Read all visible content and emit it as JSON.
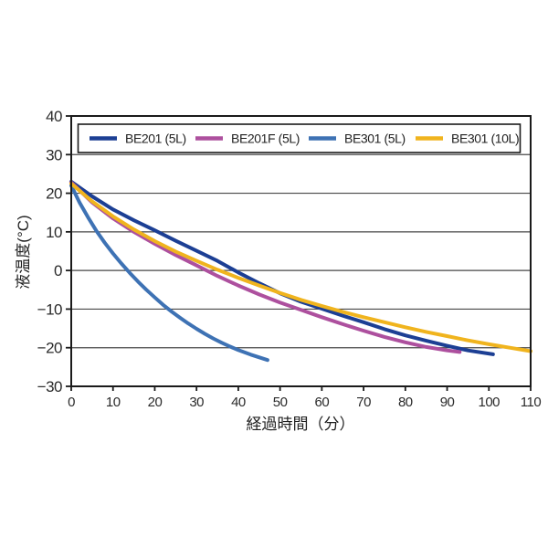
{
  "page": {
    "background": "#ffffff"
  },
  "chart_data": {
    "type": "line",
    "title": "",
    "xlabel": "経過時間（分）",
    "ylabel": "液温度(°C)",
    "xlim": [
      0,
      110
    ],
    "ylim": [
      -30,
      40
    ],
    "xticks": [
      0,
      10,
      20,
      30,
      40,
      50,
      60,
      70,
      80,
      90,
      100,
      110
    ],
    "yticks": [
      40,
      30,
      20,
      10,
      0,
      -10,
      -20,
      -30
    ],
    "grid": "horizontal-only",
    "legend_position": "top-inside",
    "axis_color": "#1a1a1a",
    "grid_color": "#474747",
    "series": [
      {
        "name": "BE201 (5L)",
        "color": "#1c3f94",
        "points": [
          [
            0,
            23.0
          ],
          [
            5,
            19.2
          ],
          [
            10,
            15.8
          ],
          [
            15,
            13.0
          ],
          [
            20,
            10.4
          ],
          [
            25,
            7.7
          ],
          [
            30,
            5.1
          ],
          [
            35,
            2.5
          ],
          [
            40,
            -0.5
          ],
          [
            45,
            -3.3
          ],
          [
            50,
            -5.9
          ],
          [
            55,
            -8.1
          ],
          [
            60,
            -9.9
          ],
          [
            65,
            -11.7
          ],
          [
            70,
            -13.4
          ],
          [
            75,
            -15.2
          ],
          [
            80,
            -16.8
          ],
          [
            85,
            -18.2
          ],
          [
            90,
            -19.5
          ],
          [
            95,
            -20.7
          ],
          [
            101,
            -21.7
          ]
        ]
      },
      {
        "name": "BE201F (5L)",
        "color": "#ad509e",
        "points": [
          [
            0,
            22.8
          ],
          [
            5,
            17.6
          ],
          [
            10,
            13.5
          ],
          [
            15,
            10.0
          ],
          [
            20,
            6.9
          ],
          [
            25,
            4.0
          ],
          [
            30,
            1.3
          ],
          [
            35,
            -1.4
          ],
          [
            40,
            -3.9
          ],
          [
            45,
            -6.2
          ],
          [
            50,
            -8.3
          ],
          [
            55,
            -10.2
          ],
          [
            60,
            -12.1
          ],
          [
            65,
            -13.9
          ],
          [
            70,
            -15.6
          ],
          [
            75,
            -17.2
          ],
          [
            80,
            -18.6
          ],
          [
            85,
            -19.8
          ],
          [
            90,
            -20.7
          ],
          [
            93,
            -21.1
          ]
        ]
      },
      {
        "name": "BE301 (5L)",
        "color": "#3e72b4",
        "points": [
          [
            0,
            22.0
          ],
          [
            2,
            17.6
          ],
          [
            4,
            13.8
          ],
          [
            6,
            10.3
          ],
          [
            8,
            7.2
          ],
          [
            10,
            4.4
          ],
          [
            12,
            1.8
          ],
          [
            14,
            -0.6
          ],
          [
            16,
            -2.9
          ],
          [
            18,
            -5.0
          ],
          [
            20,
            -7.0
          ],
          [
            22,
            -8.9
          ],
          [
            24,
            -10.6
          ],
          [
            26,
            -12.2
          ],
          [
            28,
            -13.7
          ],
          [
            30,
            -15.1
          ],
          [
            32,
            -16.4
          ],
          [
            34,
            -17.6
          ],
          [
            36,
            -18.7
          ],
          [
            38,
            -19.7
          ],
          [
            40,
            -20.6
          ],
          [
            43,
            -21.8
          ],
          [
            47,
            -23.2
          ]
        ]
      },
      {
        "name": "BE301 (10L)",
        "color": "#f0b41e",
        "points": [
          [
            0,
            22.5
          ],
          [
            5,
            17.9
          ],
          [
            10,
            14.0
          ],
          [
            15,
            10.6
          ],
          [
            20,
            7.6
          ],
          [
            25,
            4.9
          ],
          [
            30,
            2.5
          ],
          [
            35,
            0.2
          ],
          [
            40,
            -1.9
          ],
          [
            45,
            -3.9
          ],
          [
            50,
            -5.8
          ],
          [
            55,
            -7.6
          ],
          [
            60,
            -9.2
          ],
          [
            65,
            -10.7
          ],
          [
            70,
            -12.1
          ],
          [
            75,
            -13.4
          ],
          [
            80,
            -14.7
          ],
          [
            85,
            -15.9
          ],
          [
            90,
            -17.0
          ],
          [
            95,
            -18.1
          ],
          [
            100,
            -19.1
          ],
          [
            105,
            -20.0
          ],
          [
            110,
            -20.9
          ]
        ]
      }
    ]
  }
}
